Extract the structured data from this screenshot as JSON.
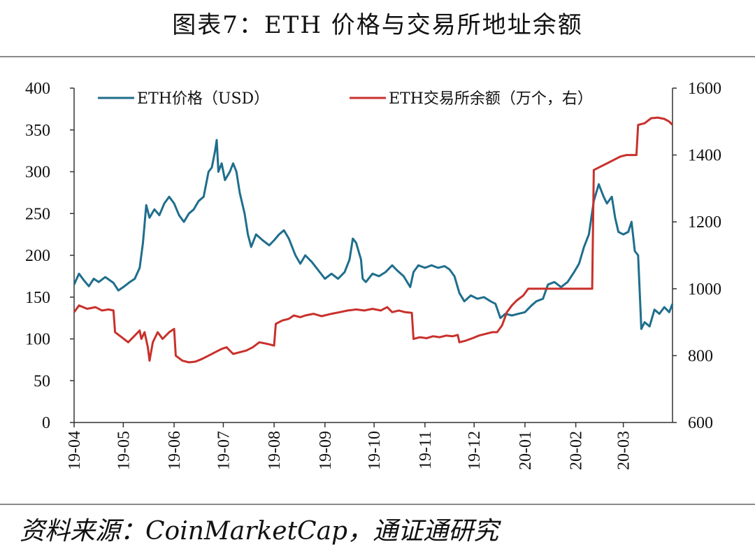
{
  "title": "图表7：ETH 价格与交易所地址余额",
  "source": "资料来源：CoinMarketCap，通证通研究",
  "colors": {
    "eth_price": "#1f6e8c",
    "exchange_balance": "#c8312c",
    "axis": "#333333"
  },
  "chart_data": {
    "type": "line",
    "x_type": "date",
    "x_range": [
      "2019-04-01",
      "2020-03-31"
    ],
    "x_tick_labels": [
      "19-04",
      "19-05",
      "19-06",
      "19-07",
      "19-08",
      "19-09",
      "19-10",
      "19-11",
      "19-12",
      "20-01",
      "20-02",
      "20-03"
    ],
    "y_left": {
      "min": 0,
      "max": 400,
      "ticks": [
        0,
        50,
        100,
        150,
        200,
        250,
        300,
        350,
        400
      ]
    },
    "y_right": {
      "min": 600,
      "max": 1600,
      "ticks": [
        600,
        800,
        1000,
        1200,
        1400,
        1600
      ]
    },
    "legend_placement": "top",
    "grid": false,
    "series": [
      {
        "name": "ETH价格（USD）",
        "axis": "left",
        "points": [
          [
            "2019-04-01",
            165
          ],
          [
            "2019-04-04",
            178
          ],
          [
            "2019-04-07",
            170
          ],
          [
            "2019-04-10",
            163
          ],
          [
            "2019-04-13",
            172
          ],
          [
            "2019-04-16",
            168
          ],
          [
            "2019-04-20",
            174
          ],
          [
            "2019-04-25",
            167
          ],
          [
            "2019-04-28",
            158
          ],
          [
            "2019-05-01",
            162
          ],
          [
            "2019-05-05",
            168
          ],
          [
            "2019-05-08",
            172
          ],
          [
            "2019-05-11",
            185
          ],
          [
            "2019-05-13",
            215
          ],
          [
            "2019-05-15",
            260
          ],
          [
            "2019-05-17",
            245
          ],
          [
            "2019-05-20",
            255
          ],
          [
            "2019-05-23",
            248
          ],
          [
            "2019-05-26",
            262
          ],
          [
            "2019-05-29",
            270
          ],
          [
            "2019-06-01",
            262
          ],
          [
            "2019-06-04",
            248
          ],
          [
            "2019-06-07",
            240
          ],
          [
            "2019-06-10",
            250
          ],
          [
            "2019-06-13",
            255
          ],
          [
            "2019-06-16",
            265
          ],
          [
            "2019-06-19",
            270
          ],
          [
            "2019-06-22",
            300
          ],
          [
            "2019-06-24",
            305
          ],
          [
            "2019-06-26",
            325
          ],
          [
            "2019-06-27",
            338
          ],
          [
            "2019-06-28",
            300
          ],
          [
            "2019-06-30",
            310
          ],
          [
            "2019-07-02",
            290
          ],
          [
            "2019-07-05",
            300
          ],
          [
            "2019-07-07",
            310
          ],
          [
            "2019-07-09",
            300
          ],
          [
            "2019-07-11",
            275
          ],
          [
            "2019-07-14",
            250
          ],
          [
            "2019-07-16",
            225
          ],
          [
            "2019-07-18",
            210
          ],
          [
            "2019-07-21",
            225
          ],
          [
            "2019-07-25",
            218
          ],
          [
            "2019-07-29",
            212
          ],
          [
            "2019-08-01",
            218
          ],
          [
            "2019-08-04",
            225
          ],
          [
            "2019-08-07",
            230
          ],
          [
            "2019-08-10",
            220
          ],
          [
            "2019-08-14",
            200
          ],
          [
            "2019-08-17",
            190
          ],
          [
            "2019-08-20",
            200
          ],
          [
            "2019-08-24",
            192
          ],
          [
            "2019-08-28",
            182
          ],
          [
            "2019-09-01",
            172
          ],
          [
            "2019-09-05",
            178
          ],
          [
            "2019-09-09",
            172
          ],
          [
            "2019-09-13",
            180
          ],
          [
            "2019-09-16",
            195
          ],
          [
            "2019-09-18",
            220
          ],
          [
            "2019-09-20",
            215
          ],
          [
            "2019-09-23",
            195
          ],
          [
            "2019-09-24",
            172
          ],
          [
            "2019-09-26",
            168
          ],
          [
            "2019-09-30",
            178
          ],
          [
            "2019-10-04",
            175
          ],
          [
            "2019-10-08",
            180
          ],
          [
            "2019-10-12",
            188
          ],
          [
            "2019-10-15",
            182
          ],
          [
            "2019-10-19",
            175
          ],
          [
            "2019-10-23",
            162
          ],
          [
            "2019-10-25",
            180
          ],
          [
            "2019-10-28",
            188
          ],
          [
            "2019-11-01",
            185
          ],
          [
            "2019-11-05",
            188
          ],
          [
            "2019-11-09",
            185
          ],
          [
            "2019-11-13",
            187
          ],
          [
            "2019-11-16",
            183
          ],
          [
            "2019-11-19",
            175
          ],
          [
            "2019-11-22",
            155
          ],
          [
            "2019-11-25",
            145
          ],
          [
            "2019-11-29",
            152
          ],
          [
            "2019-12-03",
            148
          ],
          [
            "2019-12-07",
            150
          ],
          [
            "2019-12-11",
            145
          ],
          [
            "2019-12-14",
            142
          ],
          [
            "2019-12-17",
            125
          ],
          [
            "2019-12-20",
            130
          ],
          [
            "2019-12-24",
            128
          ],
          [
            "2019-12-28",
            130
          ],
          [
            "2020-01-01",
            132
          ],
          [
            "2020-01-05",
            140
          ],
          [
            "2020-01-08",
            145
          ],
          [
            "2020-01-12",
            148
          ],
          [
            "2020-01-15",
            165
          ],
          [
            "2020-01-19",
            168
          ],
          [
            "2020-01-23",
            162
          ],
          [
            "2020-01-27",
            168
          ],
          [
            "2020-01-31",
            180
          ],
          [
            "2020-02-03",
            190
          ],
          [
            "2020-02-06",
            210
          ],
          [
            "2020-02-09",
            225
          ],
          [
            "2020-02-12",
            265
          ],
          [
            "2020-02-15",
            285
          ],
          [
            "2020-02-18",
            270
          ],
          [
            "2020-02-20",
            262
          ],
          [
            "2020-02-23",
            270
          ],
          [
            "2020-02-25",
            245
          ],
          [
            "2020-02-27",
            228
          ],
          [
            "2020-03-01",
            225
          ],
          [
            "2020-03-04",
            228
          ],
          [
            "2020-03-06",
            240
          ],
          [
            "2020-03-08",
            205
          ],
          [
            "2020-03-10",
            200
          ],
          [
            "2020-03-12",
            112
          ],
          [
            "2020-03-14",
            120
          ],
          [
            "2020-03-17",
            115
          ],
          [
            "2020-03-20",
            135
          ],
          [
            "2020-03-23",
            130
          ],
          [
            "2020-03-26",
            138
          ],
          [
            "2020-03-29",
            132
          ],
          [
            "2020-03-31",
            142
          ]
        ]
      },
      {
        "name": "ETH交易所余额（万个，右）",
        "axis": "right",
        "points": [
          [
            "2019-04-01",
            930
          ],
          [
            "2019-04-04",
            950
          ],
          [
            "2019-04-09",
            940
          ],
          [
            "2019-04-14",
            945
          ],
          [
            "2019-04-18",
            935
          ],
          [
            "2019-04-22",
            938
          ],
          [
            "2019-04-25",
            935
          ],
          [
            "2019-04-26",
            870
          ],
          [
            "2019-04-30",
            855
          ],
          [
            "2019-05-04",
            840
          ],
          [
            "2019-05-08",
            860
          ],
          [
            "2019-05-11",
            875
          ],
          [
            "2019-05-12",
            850
          ],
          [
            "2019-05-14",
            870
          ],
          [
            "2019-05-16",
            825
          ],
          [
            "2019-05-17",
            785
          ],
          [
            "2019-05-19",
            840
          ],
          [
            "2019-05-22",
            870
          ],
          [
            "2019-05-25",
            850
          ],
          [
            "2019-05-29",
            870
          ],
          [
            "2019-06-01",
            880
          ],
          [
            "2019-06-02",
            800
          ],
          [
            "2019-06-06",
            785
          ],
          [
            "2019-06-10",
            780
          ],
          [
            "2019-06-14",
            782
          ],
          [
            "2019-06-18",
            790
          ],
          [
            "2019-06-22",
            800
          ],
          [
            "2019-06-26",
            810
          ],
          [
            "2019-06-30",
            820
          ],
          [
            "2019-07-03",
            825
          ],
          [
            "2019-07-07",
            805
          ],
          [
            "2019-07-11",
            810
          ],
          [
            "2019-07-15",
            815
          ],
          [
            "2019-07-19",
            825
          ],
          [
            "2019-07-23",
            840
          ],
          [
            "2019-07-28",
            835
          ],
          [
            "2019-08-01",
            830
          ],
          [
            "2019-08-02",
            895
          ],
          [
            "2019-08-06",
            905
          ],
          [
            "2019-08-10",
            910
          ],
          [
            "2019-08-13",
            920
          ],
          [
            "2019-08-17",
            915
          ],
          [
            "2019-08-20",
            920
          ],
          [
            "2019-08-25",
            925
          ],
          [
            "2019-08-30",
            918
          ],
          [
            "2019-09-05",
            925
          ],
          [
            "2019-09-10",
            930
          ],
          [
            "2019-09-15",
            935
          ],
          [
            "2019-09-20",
            938
          ],
          [
            "2019-09-25",
            935
          ],
          [
            "2019-09-30",
            940
          ],
          [
            "2019-10-05",
            935
          ],
          [
            "2019-10-09",
            945
          ],
          [
            "2019-10-12",
            930
          ],
          [
            "2019-10-16",
            935
          ],
          [
            "2019-10-20",
            930
          ],
          [
            "2019-10-24",
            928
          ],
          [
            "2019-10-25",
            850
          ],
          [
            "2019-10-29",
            855
          ],
          [
            "2019-11-02",
            852
          ],
          [
            "2019-11-06",
            858
          ],
          [
            "2019-11-10",
            855
          ],
          [
            "2019-11-14",
            860
          ],
          [
            "2019-11-18",
            858
          ],
          [
            "2019-11-21",
            862
          ],
          [
            "2019-11-22",
            840
          ],
          [
            "2019-11-26",
            845
          ],
          [
            "2019-11-30",
            852
          ],
          [
            "2019-12-04",
            860
          ],
          [
            "2019-12-08",
            865
          ],
          [
            "2019-12-12",
            870
          ],
          [
            "2019-12-15",
            870
          ],
          [
            "2019-12-18",
            890
          ],
          [
            "2019-12-21",
            930
          ],
          [
            "2019-12-24",
            950
          ],
          [
            "2019-12-27",
            965
          ],
          [
            "2019-12-31",
            980
          ],
          [
            "2020-01-03",
            1000
          ],
          [
            "2020-01-07",
            1000
          ],
          [
            "2020-01-12",
            1000
          ],
          [
            "2020-01-20",
            1000
          ],
          [
            "2020-01-28",
            1000
          ],
          [
            "2020-02-05",
            1000
          ],
          [
            "2020-02-11",
            1000
          ],
          [
            "2020-02-12",
            1355
          ],
          [
            "2020-02-16",
            1365
          ],
          [
            "2020-02-20",
            1375
          ],
          [
            "2020-02-24",
            1385
          ],
          [
            "2020-02-28",
            1395
          ],
          [
            "2020-03-03",
            1400
          ],
          [
            "2020-03-07",
            1400
          ],
          [
            "2020-03-09",
            1400
          ],
          [
            "2020-03-10",
            1490
          ],
          [
            "2020-03-14",
            1495
          ],
          [
            "2020-03-18",
            1510
          ],
          [
            "2020-03-22",
            1512
          ],
          [
            "2020-03-26",
            1508
          ],
          [
            "2020-03-29",
            1500
          ],
          [
            "2020-03-31",
            1490
          ]
        ]
      }
    ]
  }
}
